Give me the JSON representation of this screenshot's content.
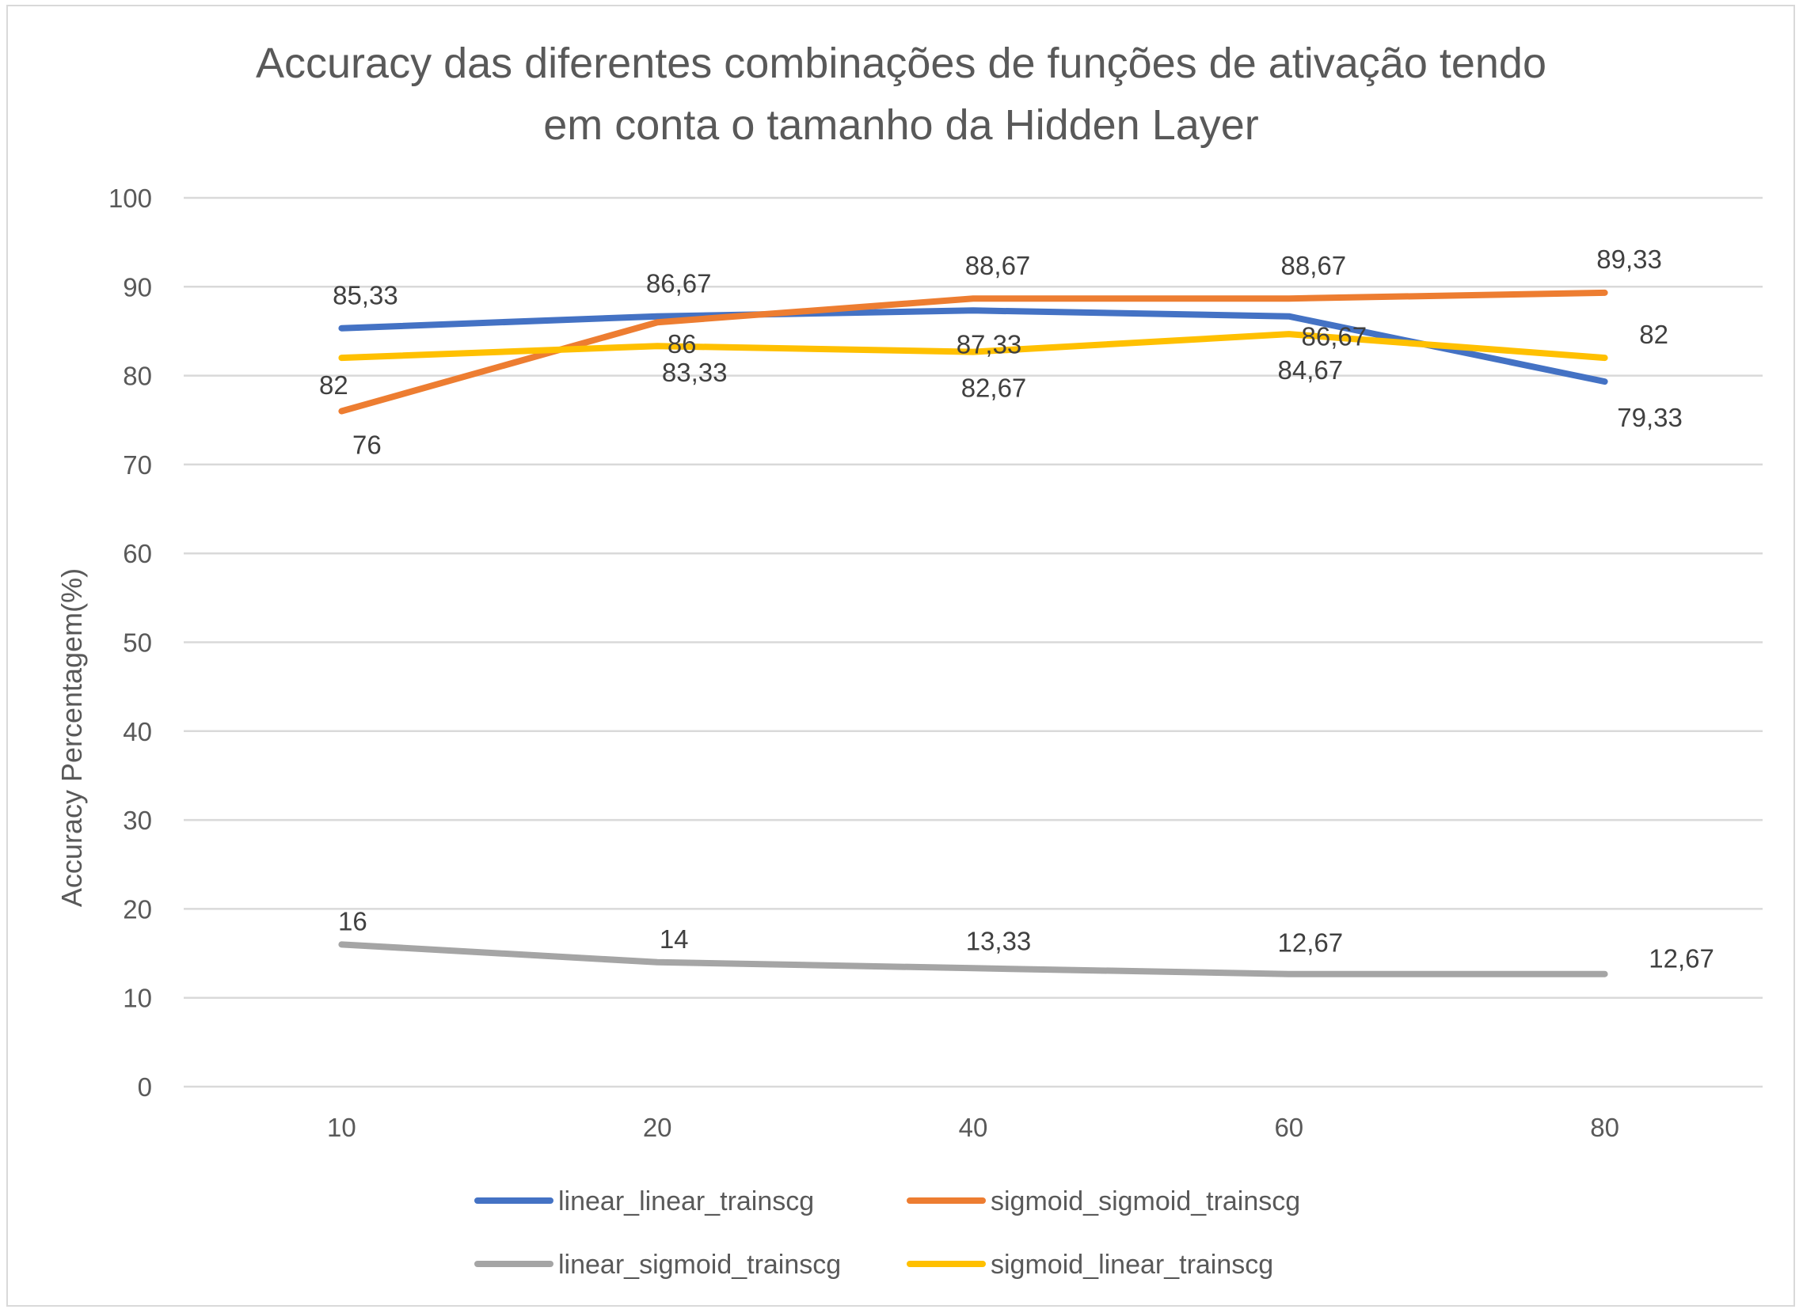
{
  "chart_data": {
    "type": "line",
    "title_lines": [
      "Accuracy das diferentes combinações de funções de ativação tendo",
      "em conta  o tamanho da Hidden Layer"
    ],
    "xlabel": "",
    "ylabel": "Accuracy Percentagem(%)",
    "categories": [
      "10",
      "20",
      "40",
      "60",
      "80"
    ],
    "ylim": [
      0,
      100
    ],
    "yticks": [
      "0",
      "10",
      "20",
      "30",
      "40",
      "50",
      "60",
      "70",
      "80",
      "90",
      "100"
    ],
    "grid": true,
    "legend_position": "bottom",
    "series": [
      {
        "name": "linear_linear_trainscg",
        "color": "#4472c4",
        "values": [
          85.33,
          86.67,
          87.33,
          86.67,
          79.33
        ],
        "labels": [
          "85,33",
          "86,67",
          "87,33",
          "86,67",
          "79,33"
        ]
      },
      {
        "name": "sigmoid_sigmoid_trainscg",
        "color": "#ed7d31",
        "values": [
          76,
          86,
          88.67,
          88.67,
          89.33
        ],
        "labels": [
          "76",
          "86",
          "88,67",
          "88,67",
          "89,33"
        ]
      },
      {
        "name": "linear_sigmoid_trainscg",
        "color": "#a5a5a5",
        "values": [
          16,
          14,
          13.33,
          12.67,
          12.67
        ],
        "labels": [
          "16",
          "14",
          "13,33",
          "12,67",
          "12,67"
        ]
      },
      {
        "name": "sigmoid_linear_trainscg",
        "color": "#ffc000",
        "values": [
          82,
          83.33,
          82.67,
          84.67,
          82
        ],
        "labels": [
          "82",
          "83,33",
          "82,67",
          "84,67",
          "82"
        ]
      }
    ]
  }
}
